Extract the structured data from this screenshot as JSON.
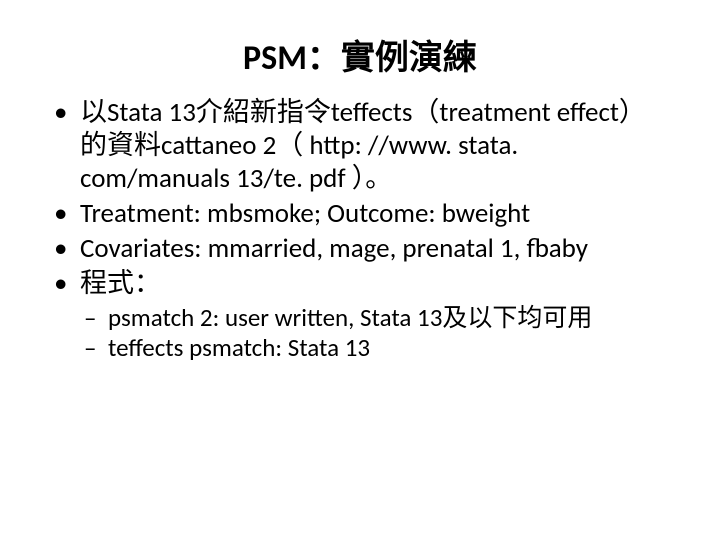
{
  "slide": {
    "title": "PSM：實例演練",
    "title_fontsize": 34,
    "title_color": "#000000",
    "body_fontsize": 27,
    "sub_fontsize": 25,
    "text_color": "#000000",
    "background_color": "#ffffff",
    "bullets": [
      {
        "level": 1,
        "text": "以Stata 13介紹新指令teffects（treatment effect）的資料cattaneo 2（ http: //www. stata. com/manuals 13/te. pdf ）。"
      },
      {
        "level": 1,
        "text": "Treatment: mbsmoke; Outcome: bweight"
      },
      {
        "level": 1,
        "text": "Covariates: mmarried, mage, prenatal 1, fbaby"
      },
      {
        "level": 1,
        "text": "程式："
      },
      {
        "level": 2,
        "text": "psmatch 2: user written, Stata 13及以下均可用"
      },
      {
        "level": 2,
        "text": "teffects psmatch: Stata 13"
      }
    ]
  }
}
